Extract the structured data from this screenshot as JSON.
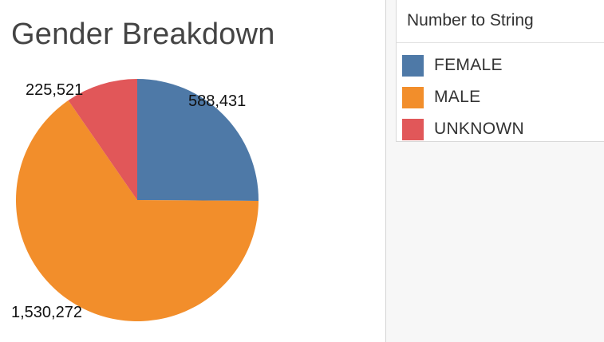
{
  "chart_data": {
    "type": "pie",
    "title": "Gender Breakdown",
    "legend_title": "Number to String",
    "legend_position": "right",
    "slices": [
      {
        "label": "FEMALE",
        "value": 588431,
        "display_value": "588,431",
        "color": "#4e79a7"
      },
      {
        "label": "MALE",
        "value": 1530272,
        "display_value": "1,530,272",
        "color": "#f28e2b"
      },
      {
        "label": "UNKNOWN",
        "value": 225521,
        "display_value": "225,521",
        "color": "#e15759"
      }
    ]
  }
}
